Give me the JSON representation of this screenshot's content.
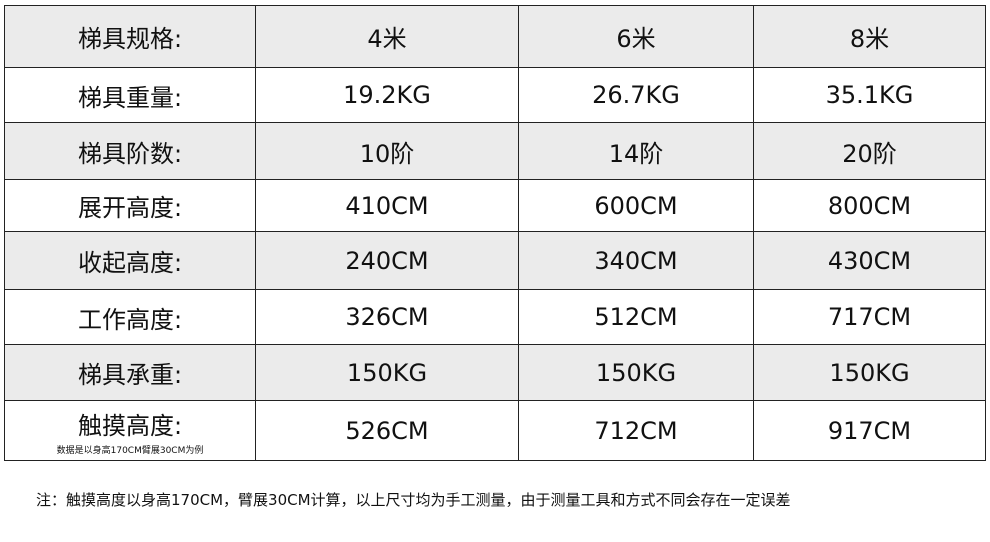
{
  "table": {
    "rows": [
      {
        "label": "梯具规格:",
        "values": [
          "4米",
          "6米",
          "8米"
        ]
      },
      {
        "label": "梯具重量:",
        "values": [
          "19.2KG",
          "26.7KG",
          "35.1KG"
        ]
      },
      {
        "label": "梯具阶数:",
        "values": [
          "10阶",
          "14阶",
          "20阶"
        ]
      },
      {
        "label": "展开高度:",
        "values": [
          "410CM",
          "600CM",
          "800CM"
        ]
      },
      {
        "label": "收起高度:",
        "values": [
          "240CM",
          "340CM",
          "430CM"
        ]
      },
      {
        "label": "工作高度:",
        "values": [
          "326CM",
          "512CM",
          "717CM"
        ]
      },
      {
        "label": "梯具承重:",
        "values": [
          "150KG",
          "150KG",
          "150KG"
        ]
      },
      {
        "label": "触摸高度:",
        "sublabel": "数据是以身高170CM臂展30CM为例",
        "values": [
          "526CM",
          "712CM",
          "917CM"
        ]
      }
    ],
    "row_colors": [
      "#ebebeb",
      "#ffffff"
    ]
  },
  "note": "注：触摸高度以身高170CM，臂展30CM计算，以上尺寸均为手工测量，由于测量工具和方式不同会存在一定误差"
}
